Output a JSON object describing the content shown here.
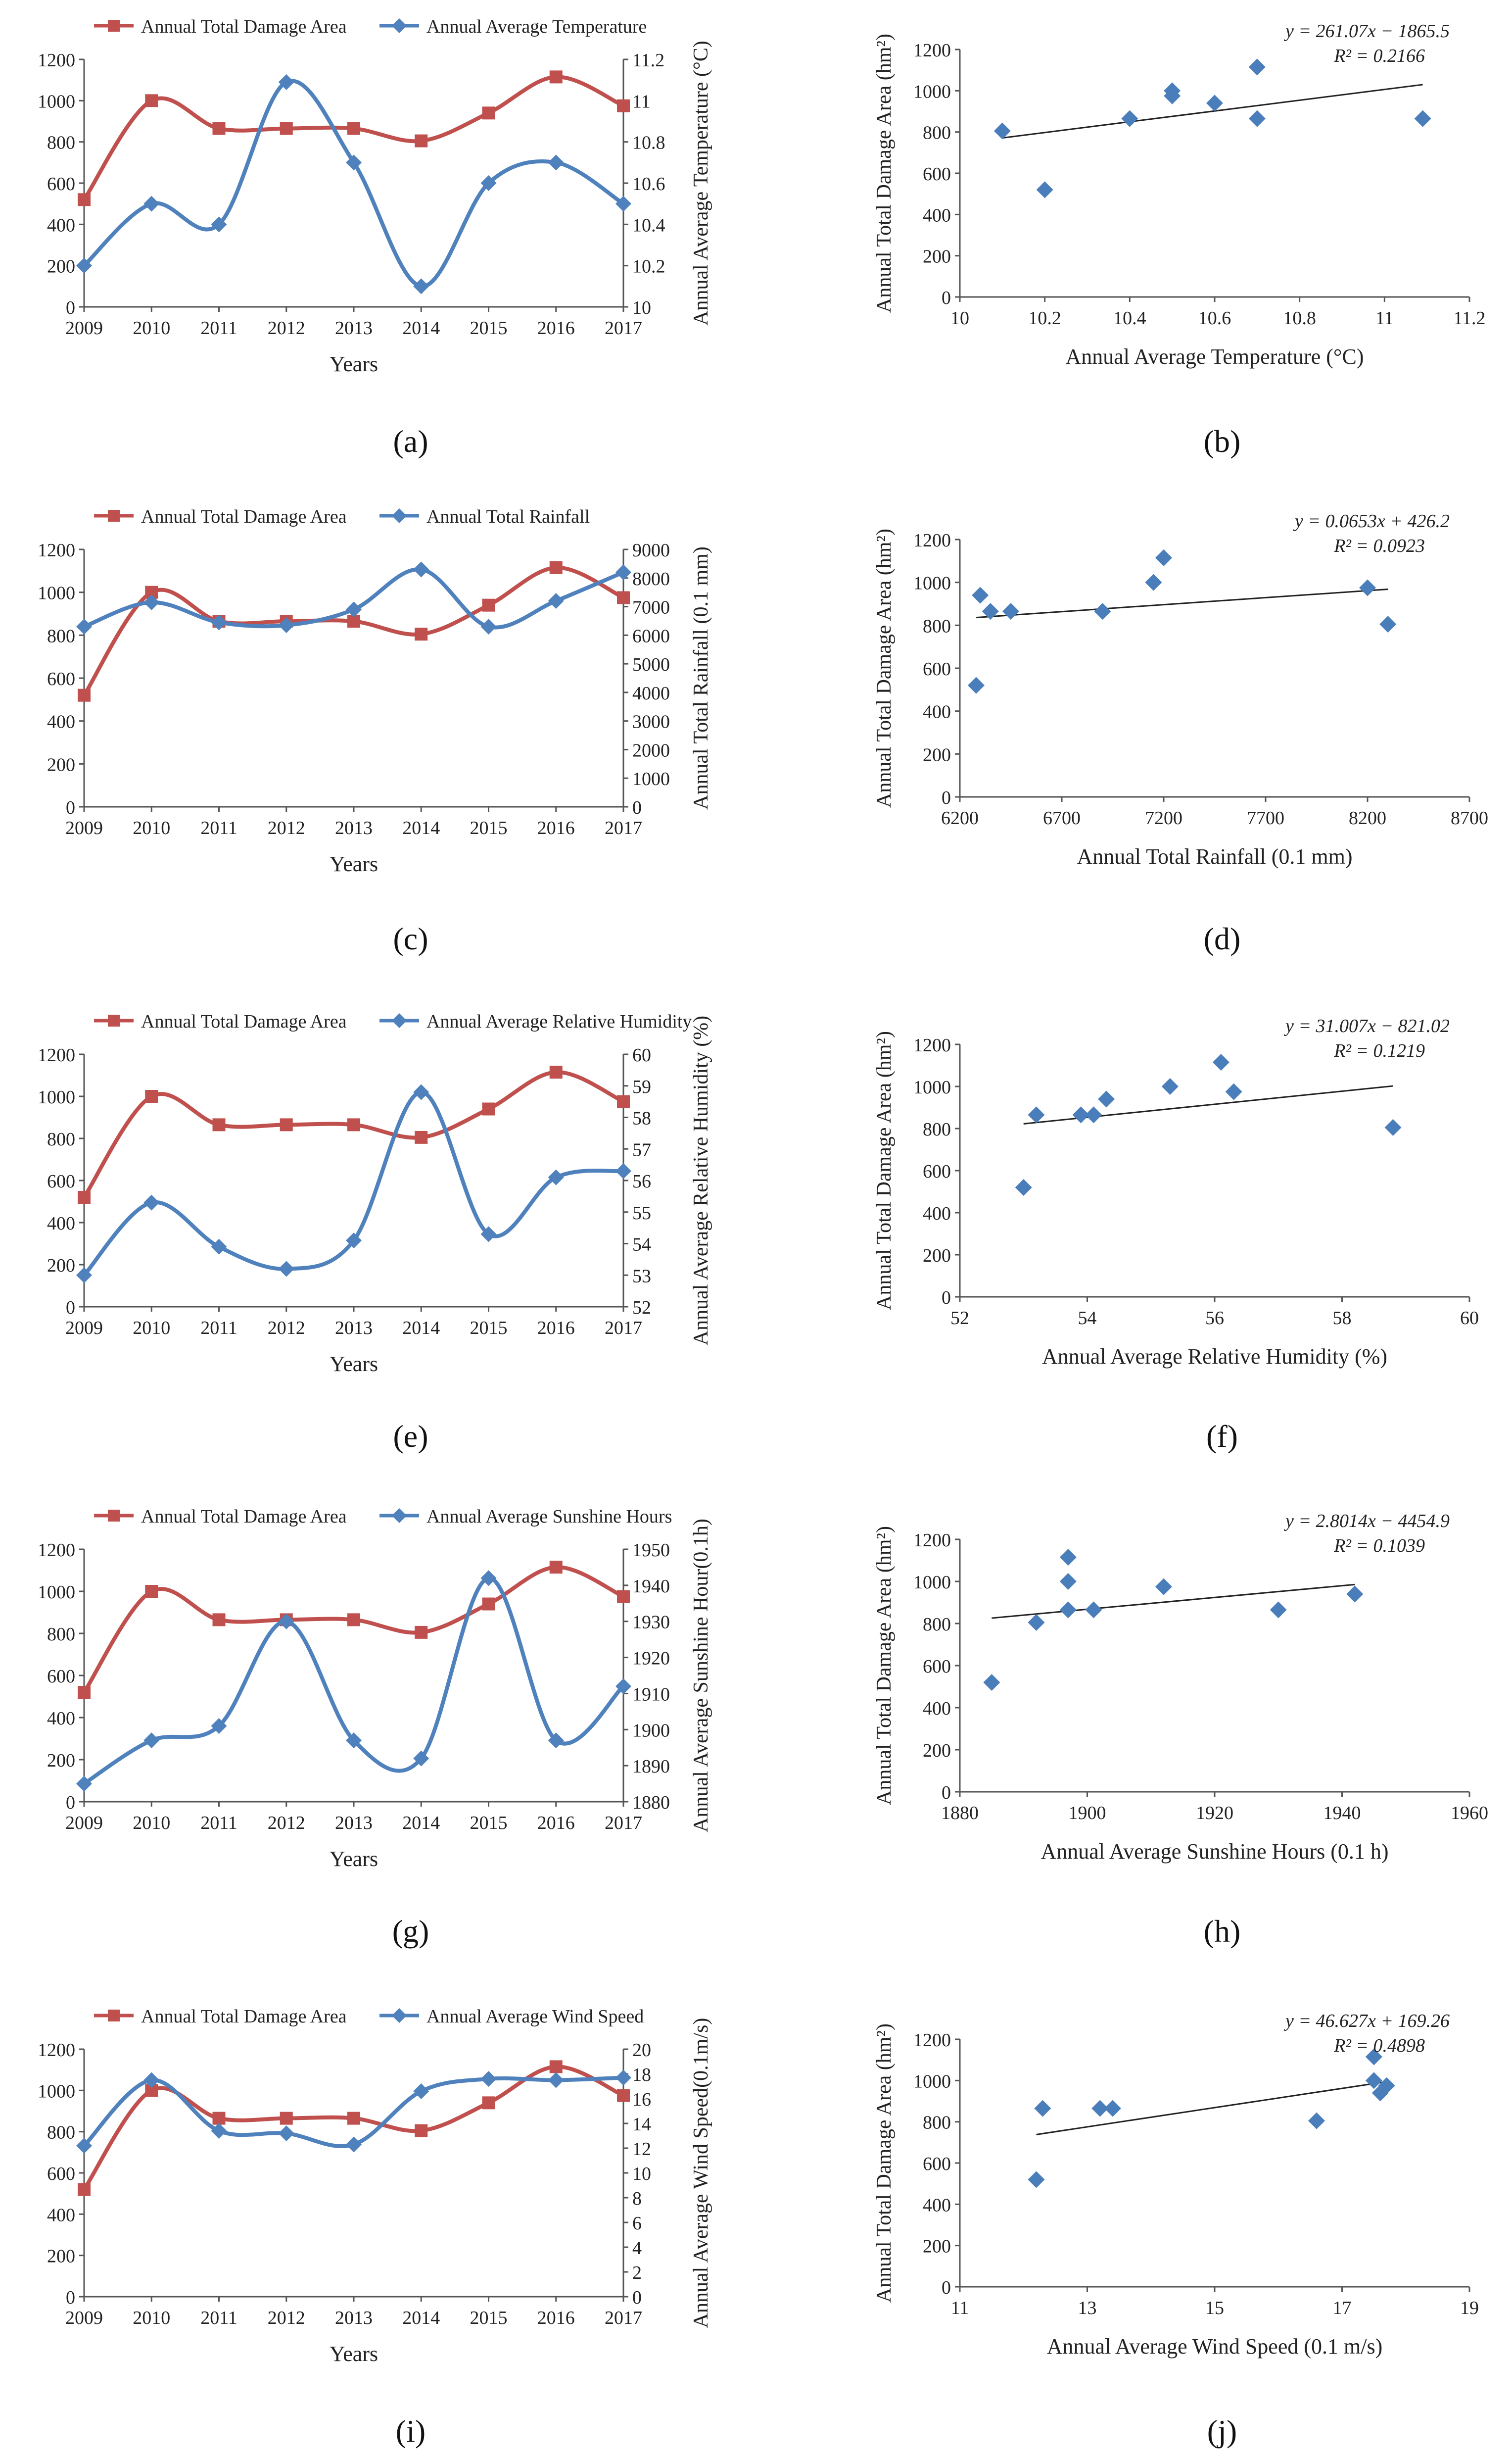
{
  "figure": {
    "captions": [
      "(a)",
      "(b)",
      "(c)",
      "(d)",
      "(e)",
      "(f)",
      "(g)",
      "(h)",
      "(i)",
      "(j)"
    ]
  },
  "colors": {
    "damage": "#c0504d",
    "climate": "#4f81bd",
    "scatter": "#4a7ebb",
    "axis": "#555555",
    "trend": "#222222"
  },
  "chart_data": [
    {
      "panel": "a",
      "type": "line",
      "x": [
        2009,
        2010,
        2011,
        2012,
        2013,
        2014,
        2015,
        2016,
        2017
      ],
      "xlabel": "Years",
      "ylabel": "",
      "ylim": [
        0,
        1200
      ],
      "yticks": [
        "0",
        "200",
        "400",
        "600",
        "800",
        "1000",
        "1200"
      ],
      "y2label": "Annual Average Temperature (°C)",
      "y2lim": [
        10,
        11.2
      ],
      "y2ticks": [
        "10",
        "10.2",
        "10.4",
        "10.6",
        "10.8",
        "11",
        "11.2"
      ],
      "series": [
        {
          "name": "Annual Total Damage Area",
          "axis": "left",
          "values": [
            520,
            1000,
            865,
            865,
            865,
            805,
            940,
            1115,
            975
          ]
        },
        {
          "name": "Annual Average Temperature",
          "axis": "right",
          "values": [
            10.2,
            10.5,
            10.4,
            11.09,
            10.7,
            10.1,
            10.6,
            10.7,
            10.5
          ]
        }
      ]
    },
    {
      "panel": "b",
      "type": "scatter",
      "xlabel": "Annual Average Temperature (°C)",
      "ylabel": "Annual Total Damage Area (hm²)",
      "xlim": [
        10,
        11.2
      ],
      "xticks": [
        "10",
        "10.2",
        "10.4",
        "10.6",
        "10.8",
        "11",
        "11.2"
      ],
      "ylim": [
        0,
        1200
      ],
      "yticks": [
        "0",
        "200",
        "400",
        "600",
        "800",
        "1000",
        "1200"
      ],
      "points": [
        [
          10.1,
          805
        ],
        [
          10.2,
          520
        ],
        [
          10.4,
          865
        ],
        [
          10.5,
          975
        ],
        [
          10.5,
          1000
        ],
        [
          10.6,
          940
        ],
        [
          10.7,
          865
        ],
        [
          10.7,
          1115
        ],
        [
          11.09,
          865
        ]
      ],
      "trend": {
        "slope": 261.07,
        "intercept": -1865.5,
        "x": [
          10.1,
          11.09
        ]
      },
      "equation": "y = 261.07x − 1865.5",
      "r2": "R² = 0.2166"
    },
    {
      "panel": "c",
      "type": "line",
      "x": [
        2009,
        2010,
        2011,
        2012,
        2013,
        2014,
        2015,
        2016,
        2017
      ],
      "xlabel": "Years",
      "ylabel": "",
      "ylim": [
        0,
        1200
      ],
      "yticks": [
        "0",
        "200",
        "400",
        "600",
        "800",
        "1000",
        "1200"
      ],
      "y2label": "Annual Total Rainfall (0.1 mm)",
      "y2lim": [
        0,
        9000
      ],
      "y2ticks": [
        "0",
        "1000",
        "2000",
        "3000",
        "4000",
        "5000",
        "6000",
        "7000",
        "8000",
        "9000"
      ],
      "series": [
        {
          "name": "Annual Total Damage Area",
          "axis": "left",
          "values": [
            520,
            1000,
            865,
            865,
            865,
            805,
            940,
            1115,
            975
          ]
        },
        {
          "name": "Annual Total Rainfall",
          "axis": "right",
          "values": [
            6300,
            7150,
            6450,
            6350,
            6900,
            8300,
            6300,
            7200,
            8200
          ]
        }
      ]
    },
    {
      "panel": "d",
      "type": "scatter",
      "xlabel": "Annual Total Rainfall (0.1 mm)",
      "ylabel": "Annual Total Damage Area (hm²)",
      "xlim": [
        6200,
        8700
      ],
      "xticks": [
        "6200",
        "6700",
        "7200",
        "7700",
        "8200",
        "8700"
      ],
      "ylim": [
        0,
        1200
      ],
      "yticks": [
        "0",
        "200",
        "400",
        "600",
        "800",
        "1000",
        "1200"
      ],
      "points": [
        [
          6280,
          520
        ],
        [
          6300,
          940
        ],
        [
          6350,
          865
        ],
        [
          6450,
          865
        ],
        [
          6900,
          865
        ],
        [
          7150,
          1000
        ],
        [
          7200,
          1115
        ],
        [
          8200,
          975
        ],
        [
          8300,
          805
        ]
      ],
      "trend": {
        "slope": 0.0653,
        "intercept": 426.2,
        "x": [
          6280,
          8300
        ]
      },
      "equation": "y = 0.0653x + 426.2",
      "r2": "R² = 0.0923"
    },
    {
      "panel": "e",
      "type": "line",
      "x": [
        2009,
        2010,
        2011,
        2012,
        2013,
        2014,
        2015,
        2016,
        2017
      ],
      "xlabel": "Years",
      "ylabel": "",
      "ylim": [
        0,
        1200
      ],
      "yticks": [
        "0",
        "200",
        "400",
        "600",
        "800",
        "1000",
        "1200"
      ],
      "y2label": "Annual Average Relative Humidity (%)",
      "y2lim": [
        52,
        60
      ],
      "y2ticks": [
        "52",
        "53",
        "54",
        "55",
        "56",
        "57",
        "58",
        "59",
        "60"
      ],
      "series": [
        {
          "name": "Annual Total Damage Area",
          "axis": "left",
          "values": [
            520,
            1000,
            865,
            865,
            865,
            805,
            940,
            1115,
            975
          ]
        },
        {
          "name": "Annual Average Relative Humidity",
          "axis": "right",
          "values": [
            53.0,
            55.3,
            53.9,
            53.2,
            54.1,
            58.8,
            54.3,
            56.1,
            56.3
          ]
        }
      ]
    },
    {
      "panel": "f",
      "type": "scatter",
      "xlabel": "Annual Average Relative Humidity (%)",
      "ylabel": "Annual Total Damage Area (hm²)",
      "xlim": [
        52,
        60
      ],
      "xticks": [
        "52",
        "54",
        "56",
        "58",
        "60"
      ],
      "ylim": [
        0,
        1200
      ],
      "yticks": [
        "0",
        "200",
        "400",
        "600",
        "800",
        "1000",
        "1200"
      ],
      "points": [
        [
          53.0,
          520
        ],
        [
          53.2,
          865
        ],
        [
          53.9,
          865
        ],
        [
          54.1,
          865
        ],
        [
          54.3,
          940
        ],
        [
          55.3,
          1000
        ],
        [
          56.1,
          1115
        ],
        [
          56.3,
          975
        ],
        [
          58.8,
          805
        ]
      ],
      "trend": {
        "slope": 31.007,
        "intercept": -821.02,
        "x": [
          53.0,
          58.8
        ]
      },
      "equation": "y = 31.007x − 821.02",
      "r2": "R² = 0.1219"
    },
    {
      "panel": "g",
      "type": "line",
      "x": [
        2009,
        2010,
        2011,
        2012,
        2013,
        2014,
        2015,
        2016,
        2017
      ],
      "xlabel": "Years",
      "ylabel": "",
      "ylim": [
        0,
        1200
      ],
      "yticks": [
        "0",
        "200",
        "400",
        "600",
        "800",
        "1000",
        "1200"
      ],
      "y2label": "Annual Average Sunshine Hour(0.1h)",
      "y2lim": [
        1880,
        1950
      ],
      "y2ticks": [
        "1880",
        "1890",
        "1900",
        "1910",
        "1920",
        "1930",
        "1940",
        "1950"
      ],
      "series": [
        {
          "name": "Annual Total Damage Area",
          "axis": "left",
          "values": [
            520,
            1000,
            865,
            865,
            865,
            805,
            940,
            1115,
            975
          ]
        },
        {
          "name": "Annual Average Sunshine Hours",
          "axis": "right",
          "values": [
            1885,
            1897,
            1901,
            1930,
            1897,
            1892,
            1942,
            1897,
            1912
          ]
        }
      ]
    },
    {
      "panel": "h",
      "type": "scatter",
      "xlabel": "Annual Average Sunshine Hours (0.1 h)",
      "ylabel": "Annual Total Damage Area (hm²)",
      "xlim": [
        1880,
        1960
      ],
      "xticks": [
        "1880",
        "1900",
        "1920",
        "1940",
        "1960"
      ],
      "ylim": [
        0,
        1200
      ],
      "yticks": [
        "0",
        "200",
        "400",
        "600",
        "800",
        "1000",
        "1200"
      ],
      "points": [
        [
          1885,
          520
        ],
        [
          1892,
          805
        ],
        [
          1897,
          865
        ],
        [
          1897,
          1000
        ],
        [
          1897,
          1115
        ],
        [
          1901,
          865
        ],
        [
          1912,
          975
        ],
        [
          1930,
          865
        ],
        [
          1942,
          940
        ]
      ],
      "trend": {
        "slope": 2.8014,
        "intercept": -4454.9,
        "x": [
          1885,
          1942
        ]
      },
      "equation": "y = 2.8014x − 4454.9",
      "r2": "R² = 0.1039"
    },
    {
      "panel": "i",
      "type": "line",
      "x": [
        2009,
        2010,
        2011,
        2012,
        2013,
        2014,
        2015,
        2016,
        2017
      ],
      "xlabel": "Years",
      "ylabel": "",
      "ylim": [
        0,
        1200
      ],
      "yticks": [
        "0",
        "200",
        "400",
        "600",
        "800",
        "1000",
        "1200"
      ],
      "y2label": "Annual Average Wind Speed(0.1m/s)",
      "y2lim": [
        0,
        20
      ],
      "y2ticks": [
        "0",
        "2",
        "4",
        "6",
        "8",
        "10",
        "12",
        "14",
        "16",
        "18",
        "20"
      ],
      "series": [
        {
          "name": "Annual Total Damage Area",
          "axis": "left",
          "values": [
            520,
            1000,
            865,
            865,
            865,
            805,
            940,
            1115,
            975
          ]
        },
        {
          "name": "Annual Average Wind Speed",
          "axis": "right",
          "values": [
            12.2,
            17.5,
            13.4,
            13.2,
            12.3,
            16.6,
            17.6,
            17.5,
            17.7
          ]
        }
      ]
    },
    {
      "panel": "j",
      "type": "scatter",
      "xlabel": "Annual Average Wind Speed (0.1 m/s)",
      "ylabel": "Annual Total Damage Area (hm²)",
      "xlim": [
        11,
        19
      ],
      "xticks": [
        "11",
        "13",
        "15",
        "17",
        "19"
      ],
      "ylim": [
        0,
        1200
      ],
      "yticks": [
        "0",
        "200",
        "400",
        "600",
        "800",
        "1000",
        "1200"
      ],
      "points": [
        [
          12.2,
          520
        ],
        [
          12.3,
          865
        ],
        [
          13.2,
          865
        ],
        [
          13.4,
          865
        ],
        [
          16.6,
          805
        ],
        [
          17.5,
          1000
        ],
        [
          17.5,
          1115
        ],
        [
          17.6,
          940
        ],
        [
          17.7,
          975
        ]
      ],
      "trend": {
        "slope": 46.627,
        "intercept": 169.26,
        "x": [
          12.2,
          17.7
        ]
      },
      "equation": "y = 46.627x + 169.26",
      "r2": "R² = 0.4898"
    }
  ]
}
